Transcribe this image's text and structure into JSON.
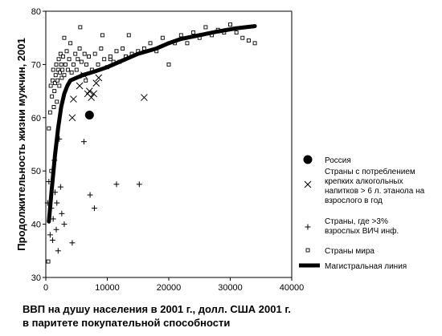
{
  "chart_data": {
    "type": "scatter",
    "ylabel": "Продолжительность жизни мужчин, 2001",
    "xlabel_line1": "ВВП на душу населения в 2001 г., долл. США 2001 г.",
    "xlabel_line2": "в паритете покупательной способности",
    "xlim": [
      0,
      40000
    ],
    "ylim": [
      30,
      80
    ],
    "x_ticks": [
      0,
      10000,
      20000,
      30000,
      40000
    ],
    "y_ticks": [
      30,
      40,
      50,
      60,
      70,
      80
    ],
    "grid": false,
    "legend_position": "right",
    "series": [
      {
        "name": "Россия",
        "marker": "filled-circle",
        "points": [
          [
            7100,
            60.5
          ]
        ]
      },
      {
        "name": "Страны с потреблением крепких алкогольных напитков > 6 л. этанола на взрослого в год",
        "marker": "x",
        "points": [
          [
            4300,
            60
          ],
          [
            4500,
            63.5
          ],
          [
            5500,
            66
          ],
          [
            6200,
            68
          ],
          [
            6800,
            64.5
          ],
          [
            7100,
            65
          ],
          [
            7400,
            63.8
          ],
          [
            7800,
            64.5
          ],
          [
            8200,
            66.5
          ],
          [
            8600,
            67.5
          ],
          [
            16000,
            63.8
          ]
        ]
      },
      {
        "name": "Страны, где >3% взрослых ВИЧ инф.",
        "marker": "plus",
        "points": [
          [
            300,
            44
          ],
          [
            500,
            48
          ],
          [
            700,
            38
          ],
          [
            900,
            43
          ],
          [
            1100,
            37
          ],
          [
            1200,
            41
          ],
          [
            1400,
            52
          ],
          [
            1500,
            46
          ],
          [
            1700,
            39
          ],
          [
            1800,
            44
          ],
          [
            2000,
            35
          ],
          [
            2200,
            56
          ],
          [
            2400,
            47
          ],
          [
            2600,
            42
          ],
          [
            3000,
            40
          ],
          [
            4300,
            36.5
          ],
          [
            6200,
            55.5
          ],
          [
            7200,
            45.5
          ],
          [
            7900,
            43
          ],
          [
            11500,
            47.5
          ],
          [
            15200,
            47.5
          ]
        ]
      },
      {
        "name": "Страны мира",
        "marker": "open-square",
        "points": [
          [
            400,
            33
          ],
          [
            500,
            58
          ],
          [
            700,
            61
          ],
          [
            800,
            66
          ],
          [
            900,
            50
          ],
          [
            1000,
            64
          ],
          [
            1100,
            67
          ],
          [
            1200,
            69
          ],
          [
            1300,
            62
          ],
          [
            1400,
            65
          ],
          [
            1500,
            66.5
          ],
          [
            1600,
            68
          ],
          [
            1700,
            70
          ],
          [
            1800,
            63
          ],
          [
            1900,
            67
          ],
          [
            2000,
            69
          ],
          [
            2100,
            71
          ],
          [
            2200,
            66
          ],
          [
            2300,
            68.5
          ],
          [
            2400,
            72
          ],
          [
            2500,
            70
          ],
          [
            2600,
            67.5
          ],
          [
            2700,
            69
          ],
          [
            2800,
            71.5
          ],
          [
            3000,
            68
          ],
          [
            3200,
            70
          ],
          [
            3400,
            72.5
          ],
          [
            3600,
            69
          ],
          [
            3800,
            71
          ],
          [
            4000,
            74
          ],
          [
            4200,
            68.5
          ],
          [
            4500,
            70
          ],
          [
            4800,
            72
          ],
          [
            5000,
            69
          ],
          [
            5200,
            71
          ],
          [
            5500,
            73
          ],
          [
            5800,
            70.5
          ],
          [
            6000,
            68
          ],
          [
            6300,
            72
          ],
          [
            6600,
            70
          ],
          [
            7000,
            71.5
          ],
          [
            7500,
            69
          ],
          [
            8000,
            72
          ],
          [
            8500,
            70
          ],
          [
            9000,
            73
          ],
          [
            9500,
            71
          ],
          [
            10000,
            69.5
          ],
          [
            10500,
            71
          ],
          [
            11000,
            70.5
          ],
          [
            11500,
            72.5
          ],
          [
            12000,
            70.5
          ],
          [
            12500,
            73
          ],
          [
            13000,
            71.5
          ],
          [
            13500,
            75.5
          ],
          [
            14000,
            72
          ],
          [
            15000,
            72.5
          ],
          [
            16000,
            73
          ],
          [
            17000,
            74
          ],
          [
            18000,
            72.5
          ],
          [
            19000,
            75
          ],
          [
            20000,
            70
          ],
          [
            21000,
            74
          ],
          [
            22000,
            75.5
          ],
          [
            23000,
            74
          ],
          [
            24000,
            76
          ],
          [
            25000,
            75
          ],
          [
            26000,
            77
          ],
          [
            27000,
            75.5
          ],
          [
            28000,
            76.5
          ],
          [
            29000,
            76
          ],
          [
            30000,
            77.5
          ],
          [
            31000,
            76
          ],
          [
            32000,
            75
          ],
          [
            33000,
            74.5
          ],
          [
            34000,
            74
          ],
          [
            10500,
            71.5
          ],
          [
            3000,
            75
          ],
          [
            5600,
            77
          ],
          [
            9200,
            75.5
          ],
          [
            6500,
            67
          ]
        ]
      },
      {
        "name": "Магистральная линия",
        "marker": "line",
        "points": [
          [
            500,
            40.5
          ],
          [
            1000,
            47
          ],
          [
            1500,
            53
          ],
          [
            2000,
            58
          ],
          [
            2500,
            62
          ],
          [
            3000,
            64.5
          ],
          [
            3500,
            66
          ],
          [
            4000,
            67
          ],
          [
            5000,
            67.5
          ],
          [
            6000,
            68
          ],
          [
            8000,
            68.7
          ],
          [
            10000,
            69.5
          ],
          [
            12000,
            70.5
          ],
          [
            15000,
            72
          ],
          [
            18000,
            73
          ],
          [
            20000,
            74
          ],
          [
            22000,
            74.8
          ],
          [
            25000,
            75.5
          ],
          [
            28000,
            76.2
          ],
          [
            31000,
            76.8
          ],
          [
            34000,
            77.2
          ]
        ]
      }
    ]
  }
}
